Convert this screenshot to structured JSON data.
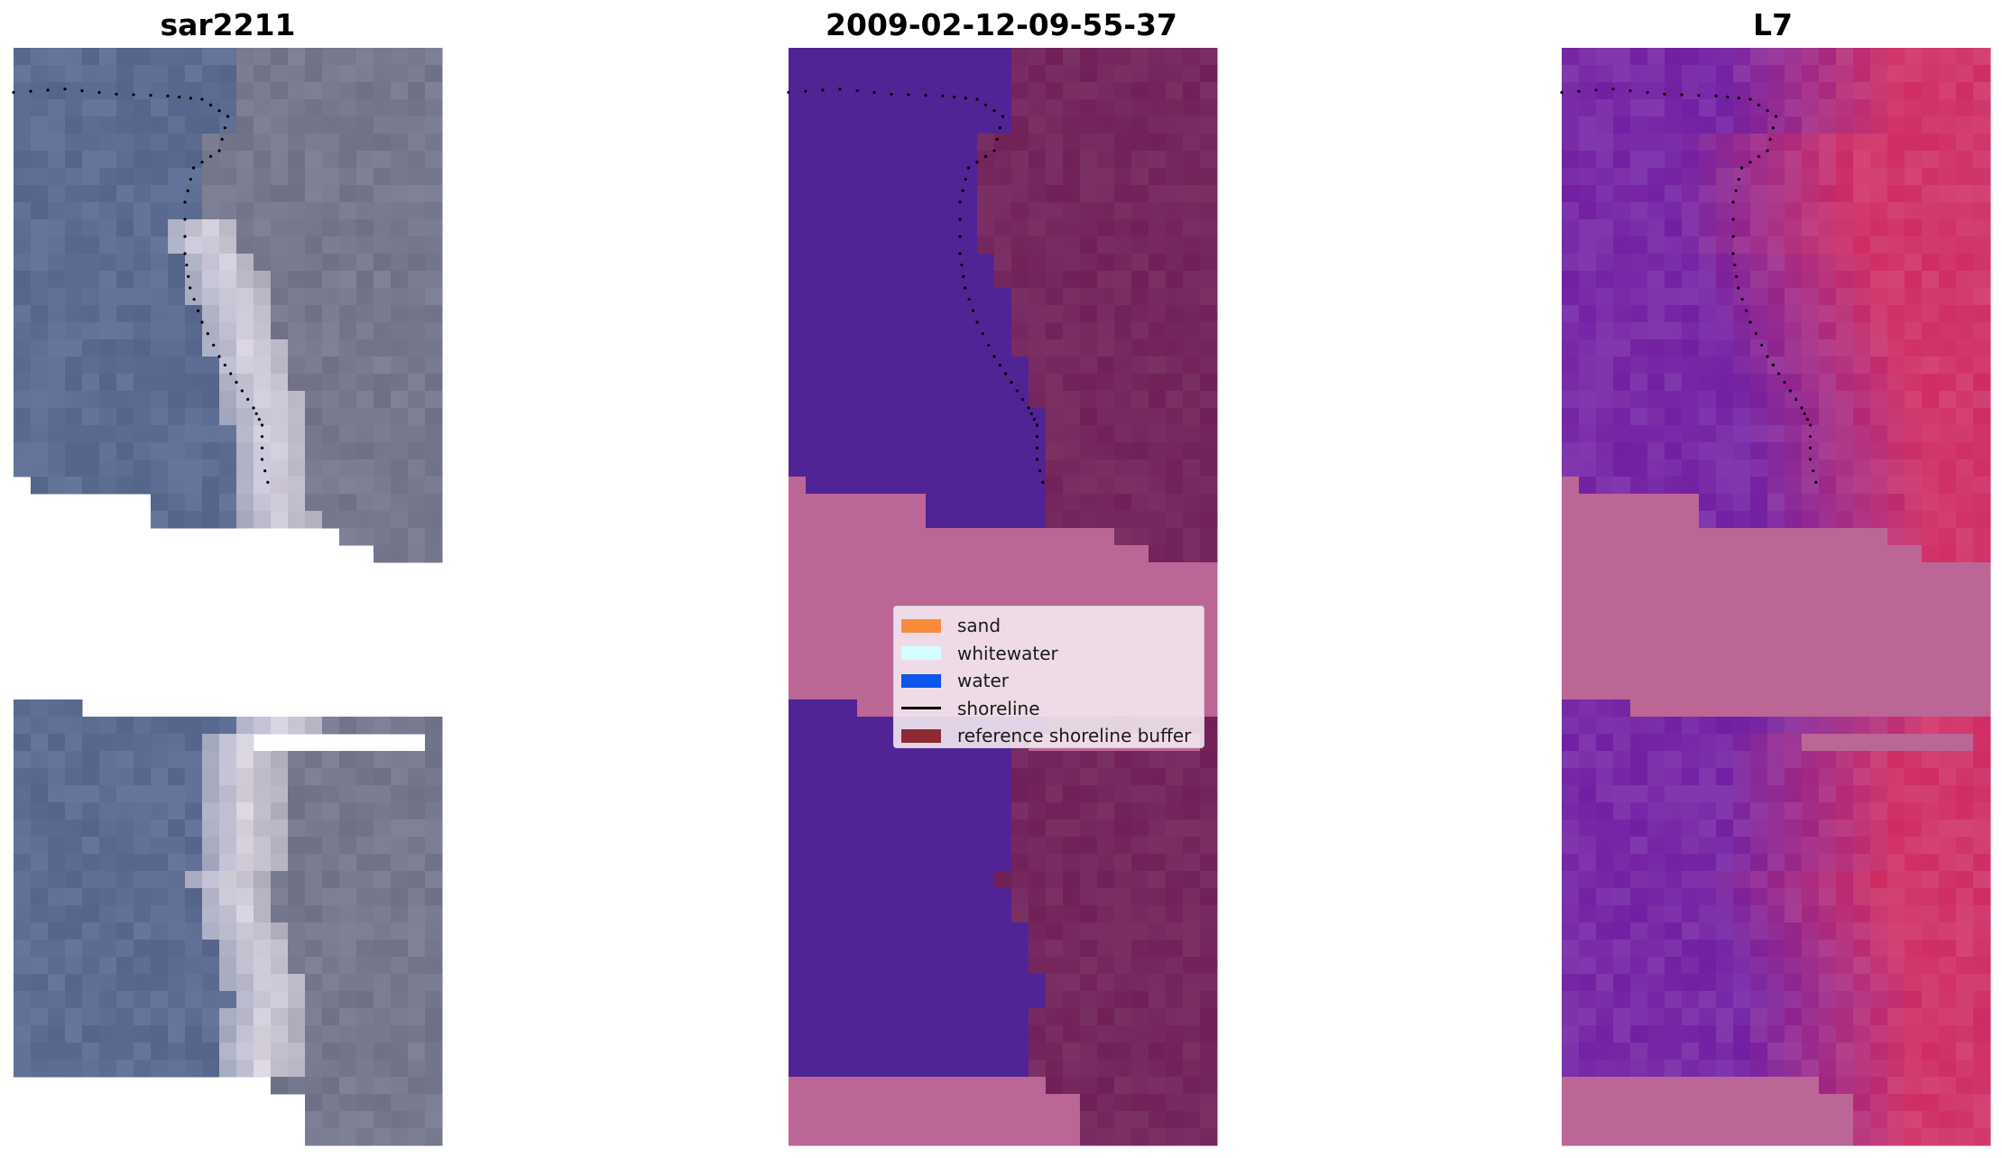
{
  "panels": {
    "left_title": "sar2211",
    "middle_title": "2009-02-12-09-55-37",
    "right_title": "L7"
  },
  "legend": {
    "items": [
      {
        "label": "sand",
        "color": "#f98b3c",
        "kind": "patch"
      },
      {
        "label": "whitewater",
        "color": "#d2feff",
        "kind": "patch"
      },
      {
        "label": "water",
        "color": "#0d56ea",
        "kind": "patch"
      },
      {
        "label": "shoreline",
        "color": "#000000",
        "kind": "line"
      },
      {
        "label": "reference shoreline buffer",
        "color": "#8e2a33",
        "kind": "patch"
      }
    ]
  },
  "colors": {
    "background": "#ffffff",
    "rgb_water": "#5a6b94",
    "rgb_land": "#76788f",
    "rgb_surf": "#e8e2ee",
    "class_water": "#502494",
    "class_land": "#76285e",
    "class_nodata": "#bc6696",
    "ndwi_water": "#7a2ca8",
    "ndwi_land": "#d2386c",
    "ndwi_nodata": "#bc6696",
    "shoreline": "#000000"
  }
}
